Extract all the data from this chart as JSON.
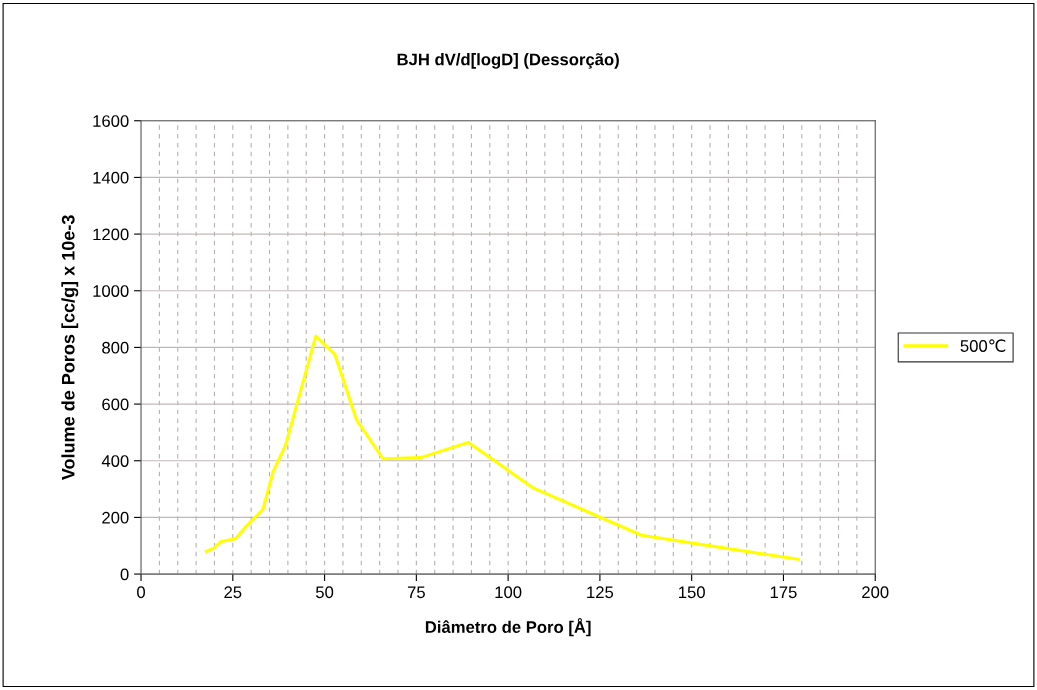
{
  "chart_data": {
    "type": "line",
    "title": "BJH dV/d[logD] (Dessorção)",
    "xlabel": "Diâmetro de Poro [Å]",
    "ylabel": "Volume de Poros [cc/g] x 10e-3",
    "xlim": [
      0,
      200
    ],
    "xticks": [
      0,
      25,
      50,
      75,
      100,
      125,
      150,
      175,
      200
    ],
    "ylim": [
      0,
      1600
    ],
    "yticks": [
      0,
      200,
      400,
      600,
      800,
      1000,
      1200,
      1400,
      1600
    ],
    "grid": true,
    "legend": "right",
    "marker": "none",
    "line_style": "solid",
    "series": [
      {
        "name": "500℃",
        "color": "#ffff00",
        "x": [
          17.8,
          19.8,
          21.9,
          25.7,
          28.2,
          33.2,
          36.0,
          39.4,
          47.6,
          52.8,
          58.7,
          65.9,
          76.2,
          89.1,
          106.8,
          136.3,
          179.0
        ],
        "values": [
          80,
          92,
          115,
          125,
          162,
          228,
          362,
          456,
          840,
          775,
          544,
          407,
          411,
          465,
          304,
          137,
          52
        ]
      }
    ]
  }
}
